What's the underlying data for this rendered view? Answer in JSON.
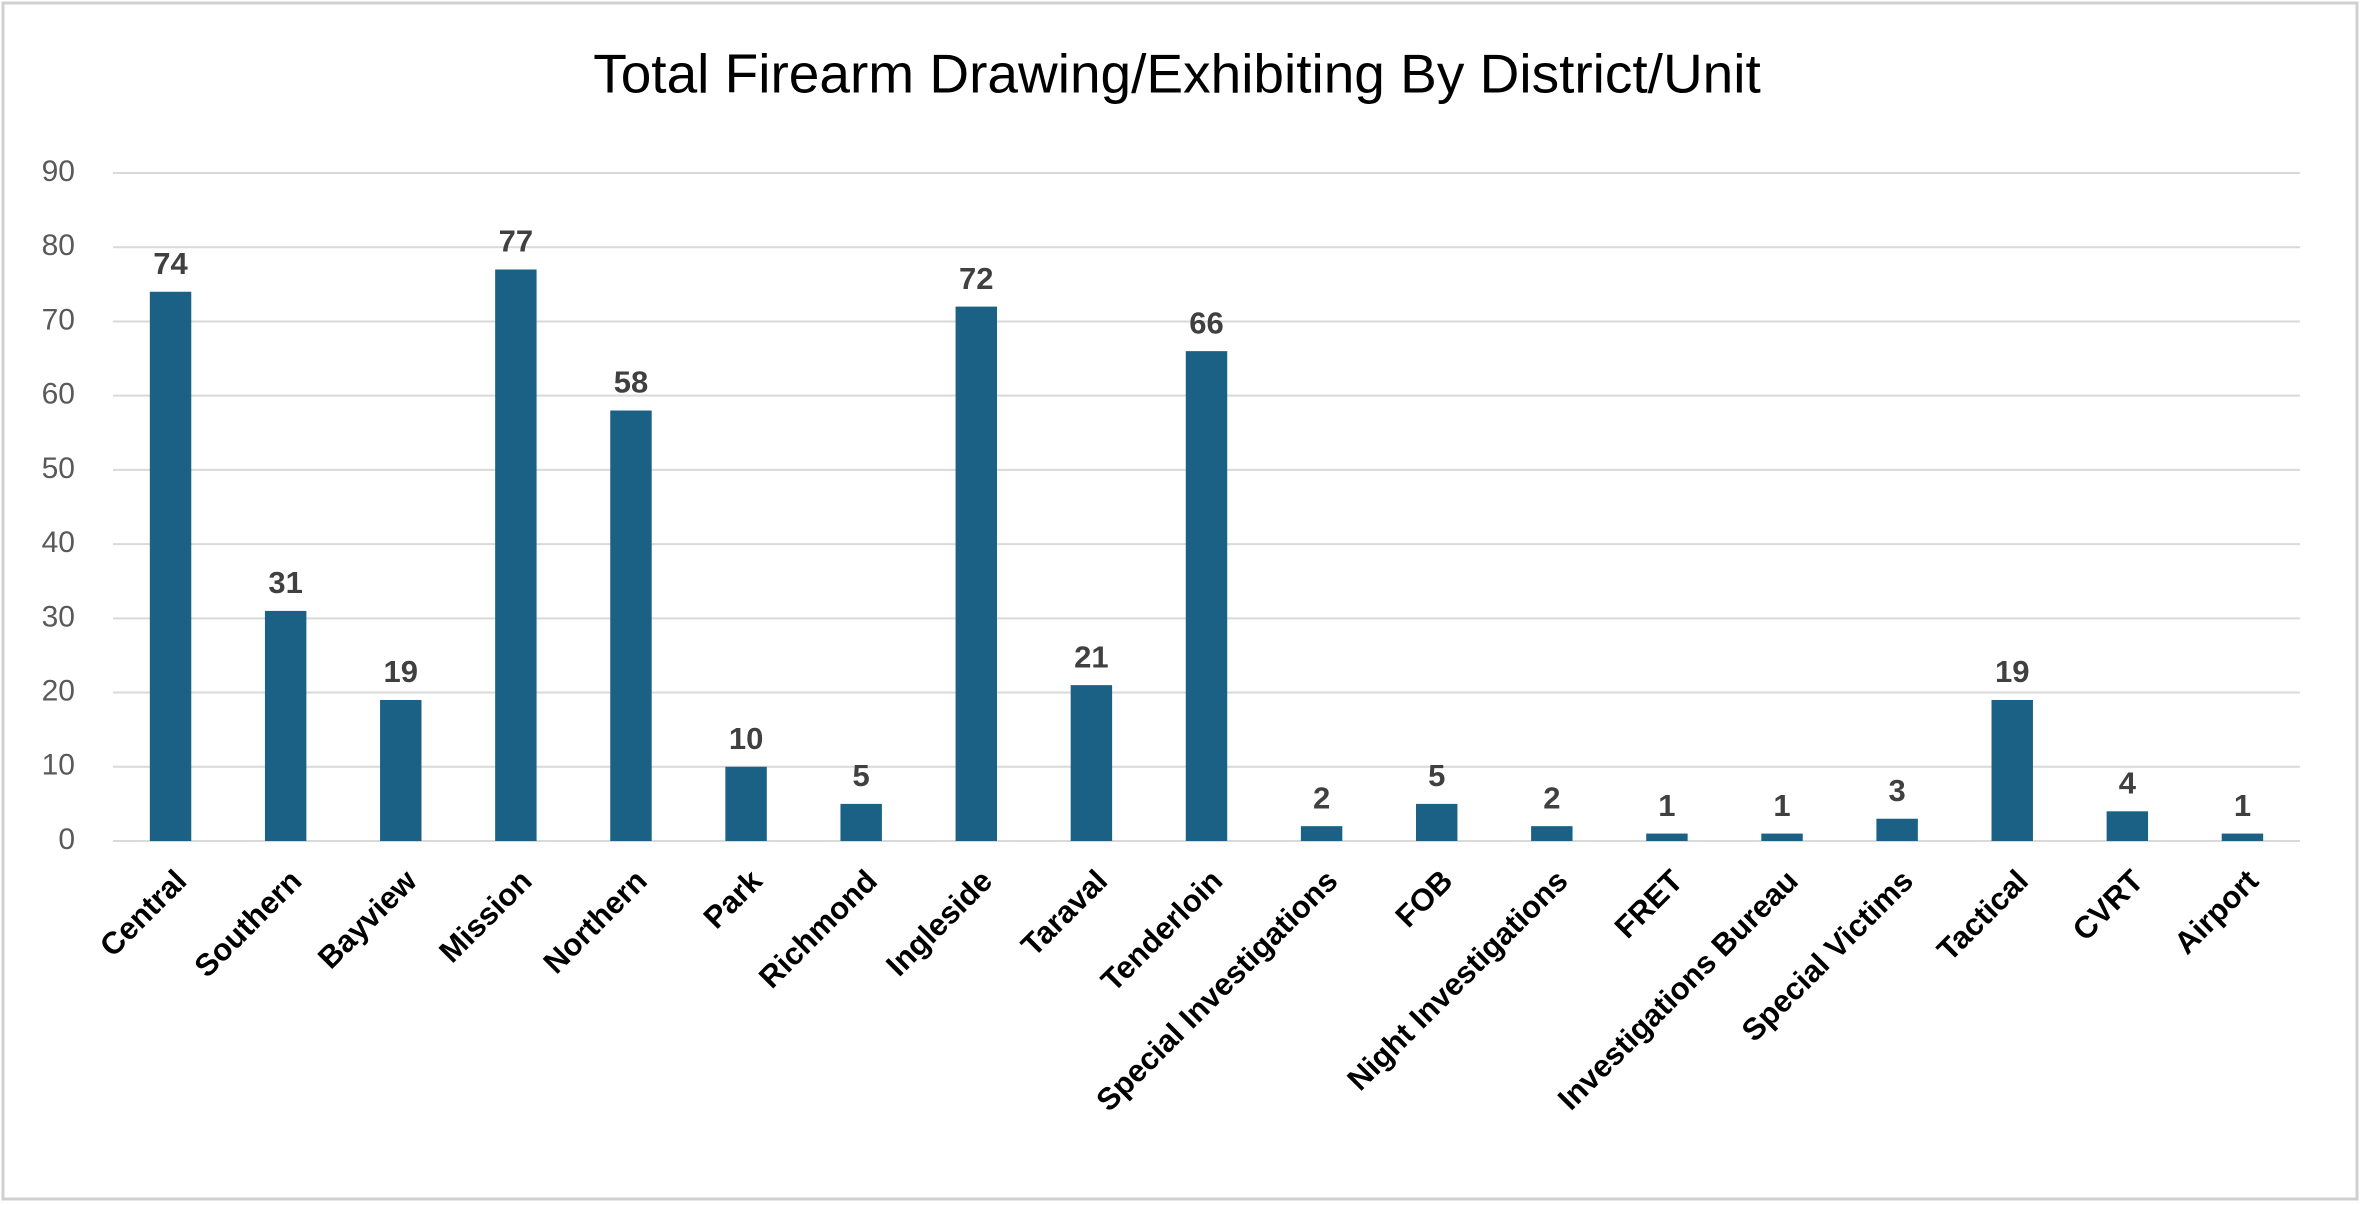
{
  "chart_data": {
    "type": "bar",
    "title": "Total Firearm Drawing/Exhibiting By District/Unit",
    "categories": [
      "Central",
      "Southern",
      "Bayview",
      "Mission",
      "Northern",
      "Park",
      "Richmond",
      "Ingleside",
      "Taraval",
      "Tenderloin",
      "Special Investigations",
      "FOB",
      "Night Investigations",
      "FRET",
      "Investigations Bureau",
      "Special Victims",
      "Tactical",
      "CVRT",
      "Airport"
    ],
    "values": [
      74,
      31,
      19,
      77,
      58,
      10,
      5,
      72,
      21,
      66,
      2,
      5,
      2,
      1,
      1,
      3,
      19,
      4,
      1
    ],
    "color": "#1a6185",
    "ylim": [
      0,
      90
    ],
    "yticks": [
      0,
      10,
      20,
      30,
      40,
      50,
      60,
      70,
      80,
      90
    ],
    "grid": true
  }
}
